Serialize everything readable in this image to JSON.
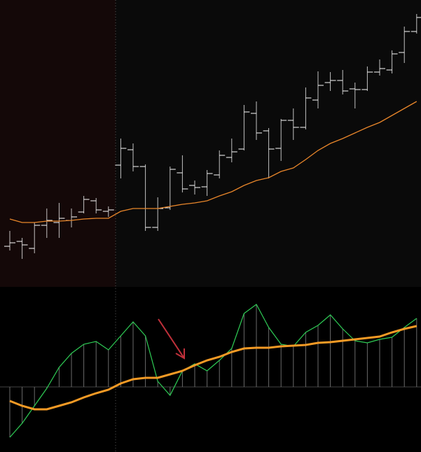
{
  "chart_data": [
    {
      "type": "ohlc",
      "color": "#ffffff",
      "ylim": [
        0,
        410
      ],
      "open": [
        58,
        65,
        55,
        88,
        92,
        95,
        107,
        123,
        108,
        174,
        196,
        172,
        85,
        113,
        163,
        145,
        143,
        160,
        185,
        197,
        248,
        223,
        198,
        238,
        228,
        267,
        292,
        295,
        283,
        282,
        307,
        310,
        335,
        365
      ],
      "high": [
        80,
        70,
        92,
        112,
        120,
        112,
        130,
        127,
        115,
        212,
        205,
        175,
        128,
        172,
        188,
        152,
        167,
        195,
        212,
        260,
        265,
        227,
        240,
        255,
        285,
        308,
        307,
        310,
        292,
        315,
        325,
        338,
        372,
        390
      ],
      "low": [
        52,
        40,
        48,
        70,
        70,
        85,
        105,
        105,
        100,
        155,
        165,
        80,
        80,
        110,
        135,
        132,
        130,
        155,
        178,
        195,
        210,
        155,
        180,
        210,
        225,
        255,
        280,
        275,
        255,
        280,
        302,
        305,
        320,
        362
      ],
      "close": [
        63,
        60,
        88,
        95,
        98,
        100,
        125,
        110,
        110,
        198,
        172,
        85,
        112,
        168,
        140,
        142,
        162,
        188,
        193,
        250,
        220,
        197,
        238,
        228,
        270,
        288,
        295,
        280,
        282,
        307,
        312,
        333,
        365,
        385
      ],
      "series": [
        {
          "color": "#e8862a",
          "values": [
            97,
            92,
            92,
            94,
            94,
            95,
            97,
            98,
            98,
            108,
            112,
            112,
            112,
            115,
            118,
            120,
            123,
            130,
            136,
            145,
            152,
            156,
            165,
            170,
            182,
            195,
            205,
            212,
            220,
            228,
            235,
            245,
            255,
            265
          ]
        }
      ]
    },
    {
      "type": "oscillator",
      "ylim": [
        -93,
        143
      ],
      "histogram_color": "#6a6a6a",
      "series": [
        {
          "color": "#2ecc55",
          "values": [
            -72,
            -52,
            -27,
            -2,
            28,
            48,
            61,
            65,
            53,
            73,
            93,
            73,
            8,
            -12,
            23,
            33,
            23,
            38,
            55,
            105,
            118,
            85,
            61,
            58,
            78,
            88,
            103,
            83,
            66,
            63,
            68,
            71,
            85,
            98
          ]
        },
        {
          "color": "#f39a25",
          "values": [
            -20,
            -27,
            -32,
            -32,
            -27,
            -22,
            -15,
            -9,
            -4,
            5,
            11,
            13,
            13,
            18,
            23,
            31,
            38,
            43,
            50,
            55,
            56,
            56,
            58,
            59,
            60,
            63,
            64,
            66,
            68,
            70,
            72,
            78,
            83,
            87
          ]
        }
      ]
    }
  ]
}
